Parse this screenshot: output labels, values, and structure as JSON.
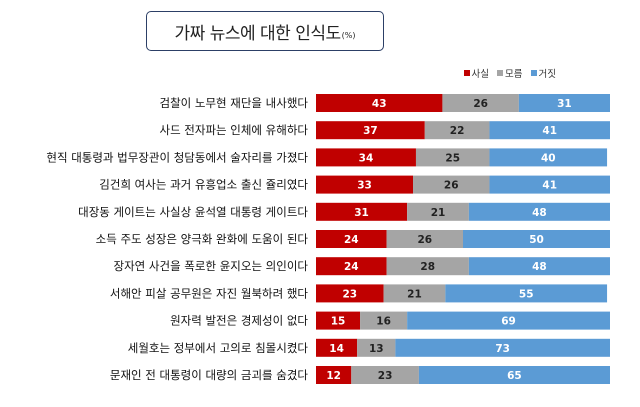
{
  "title": "가짜 뉴스에 대한 인식도",
  "unit": "(%)",
  "colors": {
    "fact": "#c00000",
    "unknown": "#a5a5a5",
    "fake": "#5b9bd5"
  },
  "chart_data": {
    "type": "bar",
    "orientation": "horizontal",
    "stacked": "100%",
    "legend_position": "top-right",
    "grid": false,
    "categories": [
      "검찰이 노무현 재단을 내사했다",
      "사드 전자파는 인체에 유해하다",
      "현직 대통령과 법무장관이 청담동에서 술자리를 가졌다",
      "김건희 여사는 과거 유흥업소 출신 쥴리였다",
      "대장동 게이트는 사실상 윤석열 대통령 게이트다",
      "소득 주도 성장은 양극화 완화에 도움이 된다",
      "장자연 사건을 폭로한 윤지오는 의인이다",
      "서해안 피살 공무원은 자진 월북하려 했다",
      "원자력 발전은 경제성이 없다",
      "세월호는 정부에서 고의로 침몰시켰다",
      "문재인 전 대통령이 대량의 금괴를 숨겼다"
    ],
    "series": [
      {
        "name": "사실",
        "values": [
          43,
          37,
          34,
          33,
          31,
          24,
          24,
          23,
          15,
          14,
          12
        ]
      },
      {
        "name": "모름",
        "values": [
          26,
          22,
          25,
          26,
          21,
          26,
          28,
          21,
          16,
          13,
          23
        ]
      },
      {
        "name": "거짓",
        "values": [
          31,
          41,
          40,
          41,
          48,
          50,
          48,
          55,
          69,
          73,
          65
        ]
      }
    ],
    "xlim": [
      0,
      100
    ]
  }
}
